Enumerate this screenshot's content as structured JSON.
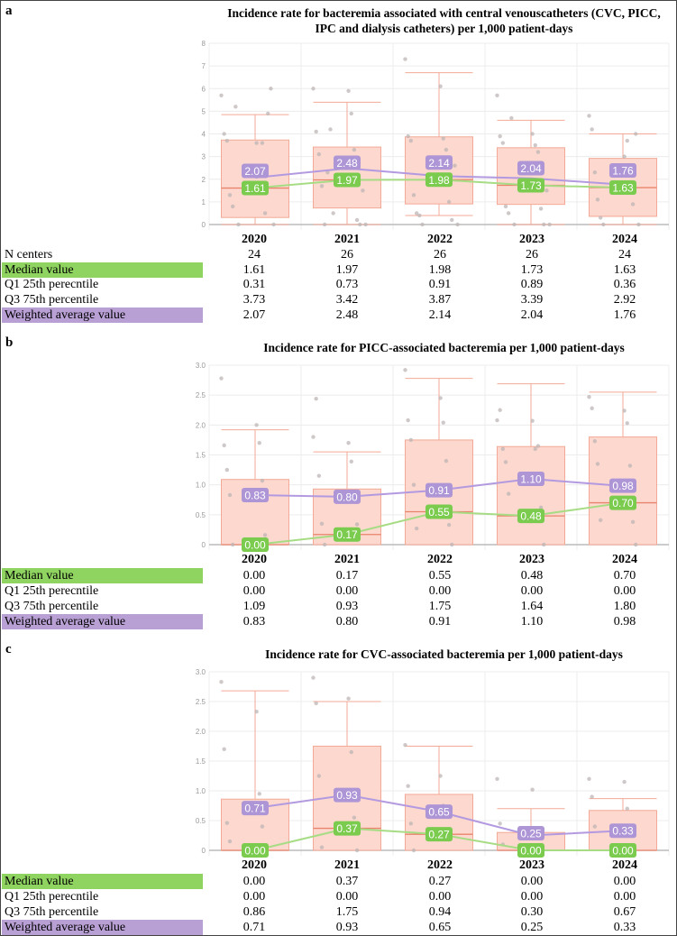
{
  "years": [
    "2020",
    "2021",
    "2022",
    "2023",
    "2024"
  ],
  "colors": {
    "box_fill": "#fcd8cf",
    "box_stroke": "#f3a995",
    "median_line": "#e8846c",
    "avg_color": "#ae96d6",
    "median_color": "#7bcb4f",
    "avg_line": "#b39ae0",
    "median_line_series": "#a7dc85",
    "dots": "#bdb6b6"
  },
  "chart_data": [
    {
      "panel": "a",
      "type": "box",
      "title": "Incidence rate for bacteremia associated with central venouscatheters (CVC, PICC, IPC and dialysis catheters) per 1,000 patient-days",
      "categories": [
        "2020",
        "2021",
        "2022",
        "2023",
        "2024"
      ],
      "ylim": [
        0,
        8
      ],
      "yticks": [
        "0",
        "1",
        "2",
        "3",
        "4",
        "5",
        "6",
        "7",
        "8"
      ],
      "whisker_low": [
        0,
        0,
        0.4,
        0,
        0
      ],
      "whisker_high": [
        4.85,
        5.4,
        6.7,
        4.6,
        4.0
      ],
      "points": [
        [
          5.7,
          3.6,
          4.0,
          1.8,
          3.7,
          3.6,
          1.3,
          0.5,
          0.8,
          4.9,
          5.2,
          6.0,
          0,
          0
        ],
        [
          6.0,
          5.9,
          4.1,
          4.9,
          3.1,
          3.3,
          1.7,
          0.2,
          0,
          0,
          2.3,
          1.5,
          4.2,
          0,
          0.5
        ],
        [
          7.3,
          6.1,
          3.9,
          3.8,
          3.7,
          3.3,
          1.3,
          1.0,
          0.5,
          0.2,
          0.4,
          2.6,
          0,
          0
        ],
        [
          5.7,
          4.0,
          3.9,
          3.5,
          3.6,
          3.2,
          0.8,
          0.7,
          0.5,
          0,
          4.7,
          1.5,
          0,
          0
        ],
        [
          4.8,
          3.0,
          4.2,
          3.7,
          2.3,
          2.5,
          1.1,
          0.9,
          0.3,
          4.0,
          0,
          0
        ]
      ],
      "rows": [
        {
          "label": "N centers",
          "values": [
            "24",
            "26",
            "26",
            "26",
            "24"
          ],
          "style": "plain"
        },
        {
          "label": "Median value",
          "values": [
            "1.61",
            "1.97",
            "1.98",
            "1.73",
            "1.63"
          ],
          "style": "green"
        },
        {
          "label": "Q1 25th perecntile",
          "values": [
            "0.31",
            "0.73",
            "0.91",
            "0.89",
            "0.36"
          ],
          "style": "plain"
        },
        {
          "label": "Q3 75th percentile",
          "values": [
            "3.73",
            "3.42",
            "3.87",
            "3.39",
            "2.92"
          ],
          "style": "plain"
        },
        {
          "label": "Weighted average value",
          "values": [
            "2.07",
            "2.48",
            "2.14",
            "2.04",
            "1.76"
          ],
          "style": "purple"
        }
      ],
      "median": [
        1.61,
        1.97,
        1.98,
        1.73,
        1.63
      ],
      "q1": [
        0.31,
        0.73,
        0.91,
        0.89,
        0.36
      ],
      "q3": [
        3.73,
        3.42,
        3.87,
        3.39,
        2.92
      ],
      "weighted_avg": [
        2.07,
        2.48,
        2.14,
        2.04,
        1.76
      ],
      "median_labels": [
        "1.61",
        "1.97",
        "1.98",
        "1.73",
        "1.63"
      ],
      "avg_labels": [
        "2.07",
        "2.48",
        "2.14",
        "2.04",
        "1.76"
      ]
    },
    {
      "panel": "b",
      "type": "box",
      "title": "Incidence rate for PICC-associated bacteremia per 1,000 patient-days",
      "categories": [
        "2020",
        "2021",
        "2022",
        "2023",
        "2024"
      ],
      "ylim": [
        0,
        3
      ],
      "yticks": [
        "0",
        "0.5",
        "1.0",
        "1.5",
        "2.0",
        "2.5",
        "3.0"
      ],
      "whisker_low": [
        0,
        0,
        0,
        0,
        0
      ],
      "whisker_high": [
        1.92,
        1.55,
        2.78,
        2.69,
        2.55
      ],
      "points": [
        [
          2.78,
          2.0,
          1.66,
          1.7,
          1.25,
          1.07,
          0.83,
          0.16,
          0
        ],
        [
          1.8,
          1.7,
          2.44,
          1.39,
          1.15,
          0.87,
          0.35,
          0.34,
          0
        ],
        [
          2.92,
          2.45,
          2.08,
          2.04,
          1.75,
          1.4,
          1.0,
          0.33,
          0.27,
          0
        ],
        [
          2.08,
          2.07,
          2.25,
          1.6,
          1.6,
          1.65,
          1.38,
          0.62,
          0.85,
          0
        ],
        [
          2.47,
          2.24,
          2.28,
          2.03,
          1.73,
          1.32,
          1.35,
          0.38,
          0.41,
          0
        ]
      ],
      "rows": [
        {
          "label": "Median value",
          "values": [
            "0.00",
            "0.17",
            "0.55",
            "0.48",
            "0.70"
          ],
          "style": "green"
        },
        {
          "label": "Q1 25th perecntile",
          "values": [
            "0.00",
            "0.00",
            "0.00",
            "0.00",
            "0.00"
          ],
          "style": "plain"
        },
        {
          "label": "Q3 75th percentile",
          "values": [
            "1.09",
            "0.93",
            "1.75",
            "1.64",
            "1.80"
          ],
          "style": "plain"
        },
        {
          "label": "Weighted average value",
          "values": [
            "0.83",
            "0.80",
            "0.91",
            "1.10",
            "0.98"
          ],
          "style": "purple"
        }
      ],
      "median": [
        0,
        0.17,
        0.55,
        0.48,
        0.7
      ],
      "q1": [
        0,
        0,
        0,
        0,
        0
      ],
      "q3": [
        1.09,
        0.93,
        1.75,
        1.64,
        1.8
      ],
      "weighted_avg": [
        0.83,
        0.8,
        0.91,
        1.1,
        0.98
      ],
      "median_labels": [
        "0.00",
        "0.17",
        "0.55",
        "0.48",
        "0.70"
      ],
      "avg_labels": [
        "0.83",
        "0.80",
        "0.91",
        "1.10",
        "0.98"
      ]
    },
    {
      "panel": "c",
      "type": "box",
      "title": "Incidence rate for CVC-associated bacteremia per 1,000 patient-days",
      "categories": [
        "2020",
        "2021",
        "2022",
        "2023",
        "2024"
      ],
      "ylim": [
        0,
        3
      ],
      "yticks": [
        "0",
        "0.5",
        "1.0",
        "1.5",
        "2.0",
        "2.5",
        "3.0"
      ],
      "whisker_low": [
        0,
        0,
        0,
        0,
        0
      ],
      "whisker_high": [
        2.68,
        2.5,
        1.75,
        0.7,
        0.87
      ],
      "points": [
        [
          2.83,
          2.33,
          1.7,
          0.95,
          0.46,
          0.4,
          0.15,
          0
        ],
        [
          2.9,
          2.55,
          2.47,
          1.65,
          1.25,
          0.55,
          0.05,
          0
        ],
        [
          1.77,
          1.25,
          1.08,
          0.75,
          0.45,
          0.2,
          0
        ],
        [
          1.2,
          1.02,
          0.45,
          0.25,
          0.1,
          0
        ],
        [
          1.2,
          1.15,
          0.9,
          0.7,
          0.4,
          0
        ]
      ],
      "rows": [
        {
          "label": "Median value",
          "values": [
            "0.00",
            "0.37",
            "0.27",
            "0.00",
            "0.00"
          ],
          "style": "green"
        },
        {
          "label": "Q1 25th perecntile",
          "values": [
            "0.00",
            "0.00",
            "0.00",
            "0.00",
            "0.00"
          ],
          "style": "plain"
        },
        {
          "label": "Q3 75th percentile",
          "values": [
            "0.86",
            "1.75",
            "0.94",
            "0.30",
            "0.67"
          ],
          "style": "plain"
        },
        {
          "label": "Weighted average value",
          "values": [
            "0.71",
            "0.93",
            "0.65",
            "0.25",
            "0.33"
          ],
          "style": "purple"
        }
      ],
      "median": [
        0,
        0.37,
        0.27,
        0,
        0
      ],
      "q1": [
        0,
        0,
        0,
        0,
        0
      ],
      "q3": [
        0.86,
        1.75,
        0.94,
        0.3,
        0.67
      ],
      "weighted_avg": [
        0.71,
        0.93,
        0.65,
        0.25,
        0.33
      ],
      "median_labels": [
        "0.00",
        "0.37",
        "0.27",
        "0.00",
        "0.00"
      ],
      "avg_labels": [
        "0.71",
        "0.93",
        "0.65",
        "0.25",
        "0.33"
      ]
    }
  ]
}
